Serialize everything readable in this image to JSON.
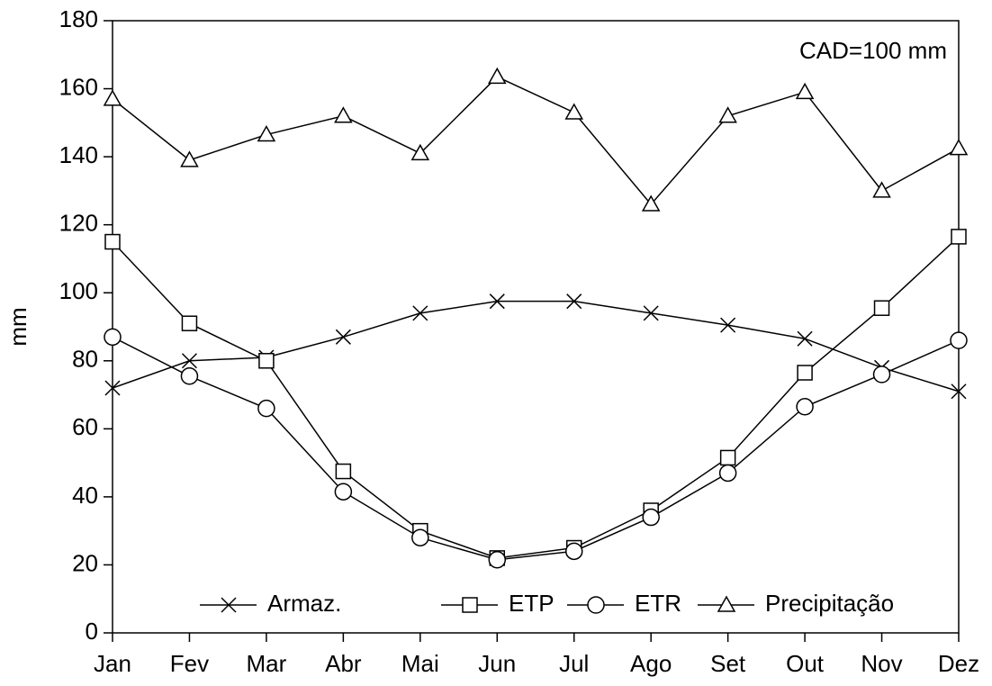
{
  "chart_data": {
    "type": "line",
    "y_label": "mm",
    "annotation": "CAD=100 mm",
    "categories": [
      "Jan",
      "Fev",
      "Mar",
      "Abr",
      "Mai",
      "Jun",
      "Jul",
      "Ago",
      "Set",
      "Out",
      "Nov",
      "Dez"
    ],
    "ylim": [
      0,
      180
    ],
    "yticks": [
      0,
      20,
      40,
      60,
      80,
      100,
      120,
      140,
      160,
      180
    ],
    "grid": false,
    "legend": "bottom",
    "series": [
      {
        "name": "Armaz.",
        "color": "#000000",
        "marker": "x",
        "values": [
          72,
          80,
          81,
          87,
          94,
          97.5,
          97.5,
          94,
          90.5,
          86.5,
          78,
          71
        ]
      },
      {
        "name": "ETP",
        "color": "#000000",
        "marker": "square",
        "values": [
          115,
          91,
          80,
          47.5,
          30,
          22,
          25,
          36,
          51.5,
          76.5,
          95.5,
          116.5
        ]
      },
      {
        "name": "ETR",
        "color": "#000000",
        "marker": "circle",
        "values": [
          87,
          75.5,
          66,
          41.5,
          28,
          21.5,
          24,
          34,
          47,
          66.5,
          76,
          86
        ]
      },
      {
        "name": "Precipitação",
        "color": "#000000",
        "marker": "triangle",
        "values": [
          157,
          139,
          146.5,
          152,
          141,
          163.5,
          153,
          126,
          152,
          159,
          130,
          142.5
        ]
      }
    ]
  }
}
